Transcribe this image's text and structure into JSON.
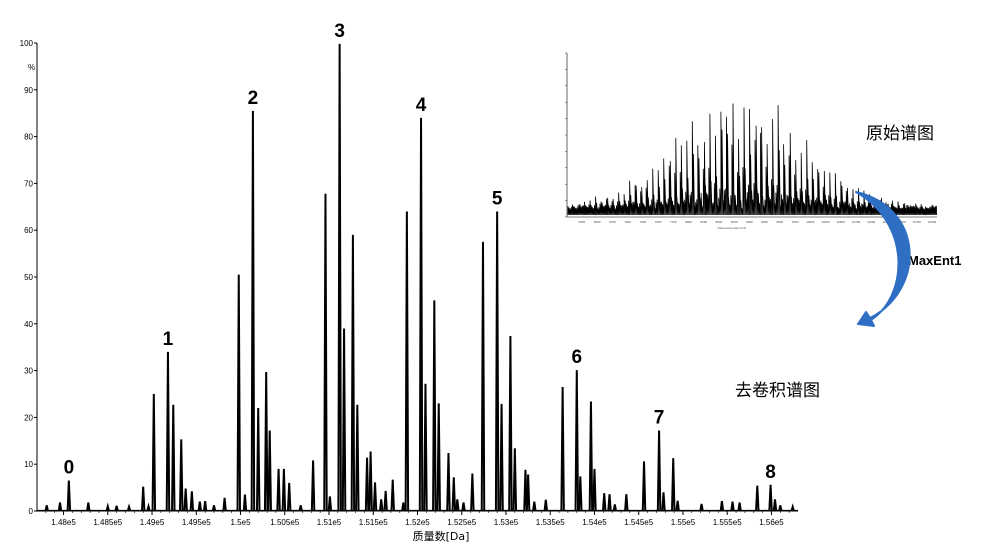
{
  "chart_data": {
    "type": "line",
    "xlabel": "质量数[Da]",
    "ylabel": "%",
    "xlim": [
      147700,
      156300
    ],
    "ylim": [
      0,
      100
    ],
    "y_ticks": [
      "100",
      "90",
      "80",
      "70",
      "60",
      "50",
      "40",
      "30",
      "20",
      "10",
      "0"
    ],
    "x_ticks": [
      {
        "v": 148000,
        "label": "1.48e5"
      },
      {
        "v": 148500,
        "label": "1.485e5"
      },
      {
        "v": 149000,
        "label": "1.49e5"
      },
      {
        "v": 149500,
        "label": "1.495e5"
      },
      {
        "v": 150000,
        "label": "1.5e5"
      },
      {
        "v": 150500,
        "label": "1.505e5"
      },
      {
        "v": 151000,
        "label": "1.51e5"
      },
      {
        "v": 151500,
        "label": "1.515e5"
      },
      {
        "v": 152000,
        "label": "1.52e5"
      },
      {
        "v": 152500,
        "label": "1.525e5"
      },
      {
        "v": 153000,
        "label": "1.53e5"
      },
      {
        "v": 153500,
        "label": "1.535e5"
      },
      {
        "v": 154000,
        "label": "1.54e5"
      },
      {
        "v": 154500,
        "label": "1.545e5"
      },
      {
        "v": 155000,
        "label": "1.55e5"
      },
      {
        "v": 155500,
        "label": "1.555e5"
      },
      {
        "v": 156000,
        "label": "1.56e5"
      }
    ],
    "peaks": [
      [
        147810,
        1.2
      ],
      [
        147960,
        1.8
      ],
      [
        148060,
        6.5
      ],
      [
        148280,
        1.8
      ],
      [
        148500,
        1.0
      ],
      [
        148600,
        1.1
      ],
      [
        148740,
        0.9
      ],
      [
        148900,
        5.2
      ],
      [
        148960,
        1.0
      ],
      [
        149020,
        25
      ],
      [
        149180,
        34
      ],
      [
        149240,
        22.7
      ],
      [
        149330,
        15.3
      ],
      [
        149380,
        4.8
      ],
      [
        149450,
        4.2
      ],
      [
        149540,
        2
      ],
      [
        149600,
        2.1
      ],
      [
        149700,
        1.2
      ],
      [
        149820,
        2.8
      ],
      [
        149980,
        50.5
      ],
      [
        150050,
        3.5
      ],
      [
        150140,
        85.5
      ],
      [
        150200,
        22
      ],
      [
        150290,
        29.7
      ],
      [
        150330,
        17.2
      ],
      [
        150430,
        9
      ],
      [
        150490,
        9
      ],
      [
        150550,
        6
      ],
      [
        150680,
        1.2
      ],
      [
        150820,
        10.8
      ],
      [
        150960,
        67.8
      ],
      [
        151010,
        3.1
      ],
      [
        151120,
        99.8
      ],
      [
        151170,
        39
      ],
      [
        151270,
        59
      ],
      [
        151320,
        22.7
      ],
      [
        151430,
        11.4
      ],
      [
        151470,
        12.7
      ],
      [
        151520,
        6.1
      ],
      [
        151590,
        2.5
      ],
      [
        151640,
        4.3
      ],
      [
        151720,
        6.7
      ],
      [
        151840,
        1.8
      ],
      [
        151880,
        64
      ],
      [
        152040,
        84
      ],
      [
        152090,
        27.2
      ],
      [
        152190,
        45
      ],
      [
        152240,
        23
      ],
      [
        152350,
        12.4
      ],
      [
        152410,
        7.2
      ],
      [
        152450,
        2.5
      ],
      [
        152520,
        1.8
      ],
      [
        152620,
        8
      ],
      [
        152740,
        57.5
      ],
      [
        152900,
        64
      ],
      [
        152950,
        22.9
      ],
      [
        153050,
        37.4
      ],
      [
        153100,
        13.4
      ],
      [
        153220,
        8.8
      ],
      [
        153250,
        7.8
      ],
      [
        153320,
        2
      ],
      [
        153450,
        2.4
      ],
      [
        153640,
        26.5
      ],
      [
        153800,
        30.1
      ],
      [
        153840,
        7.4
      ],
      [
        153960,
        23.4
      ],
      [
        154000,
        9
      ],
      [
        154110,
        3.8
      ],
      [
        154170,
        3.6
      ],
      [
        154230,
        1.4
      ],
      [
        154360,
        3.6
      ],
      [
        154560,
        10.6
      ],
      [
        154730,
        17.2
      ],
      [
        154780,
        4
      ],
      [
        154890,
        11.3
      ],
      [
        154940,
        2.2
      ],
      [
        155210,
        1.5
      ],
      [
        155440,
        2.1
      ],
      [
        155560,
        2
      ],
      [
        155640,
        1.8
      ],
      [
        155840,
        5.4
      ],
      [
        155990,
        5.6
      ],
      [
        156040,
        2.5
      ],
      [
        156100,
        1.2
      ],
      [
        156240,
        0.9
      ]
    ],
    "peak_labels": [
      {
        "v": 148060,
        "y": 6.5,
        "label": "0"
      },
      {
        "v": 149180,
        "y": 34,
        "label": "1"
      },
      {
        "v": 150140,
        "y": 85.5,
        "label": "2"
      },
      {
        "v": 151120,
        "y": 99.8,
        "label": "3"
      },
      {
        "v": 152040,
        "y": 84,
        "label": "4"
      },
      {
        "v": 152900,
        "y": 64,
        "label": "5"
      },
      {
        "v": 153800,
        "y": 30.1,
        "label": "6"
      },
      {
        "v": 154730,
        "y": 17.2,
        "label": "7"
      },
      {
        "v": 155990,
        "y": 5.6,
        "label": "8"
      }
    ]
  },
  "inset_chart": {
    "description_label": "原始谱图",
    "xlabel": "Observed mass (m/z)",
    "x_tick_labels": [
      "6250",
      "6500",
      "6750",
      "7000",
      "7250",
      "7500",
      "7750",
      "8000",
      "8250",
      "8500",
      "8750",
      "9000",
      "9250",
      "9500",
      "9750",
      "10000",
      "10250",
      "10500",
      "10750",
      "11000",
      "11250",
      "11500",
      "11750",
      "12000"
    ]
  },
  "annotations": {
    "raw_label": "原始谱图",
    "algorithm_label": "MaxEnt1",
    "deconvolved_label": "去卷积谱图"
  },
  "colors": {
    "arrow": "#2e6fc4",
    "trace": "#000000"
  }
}
